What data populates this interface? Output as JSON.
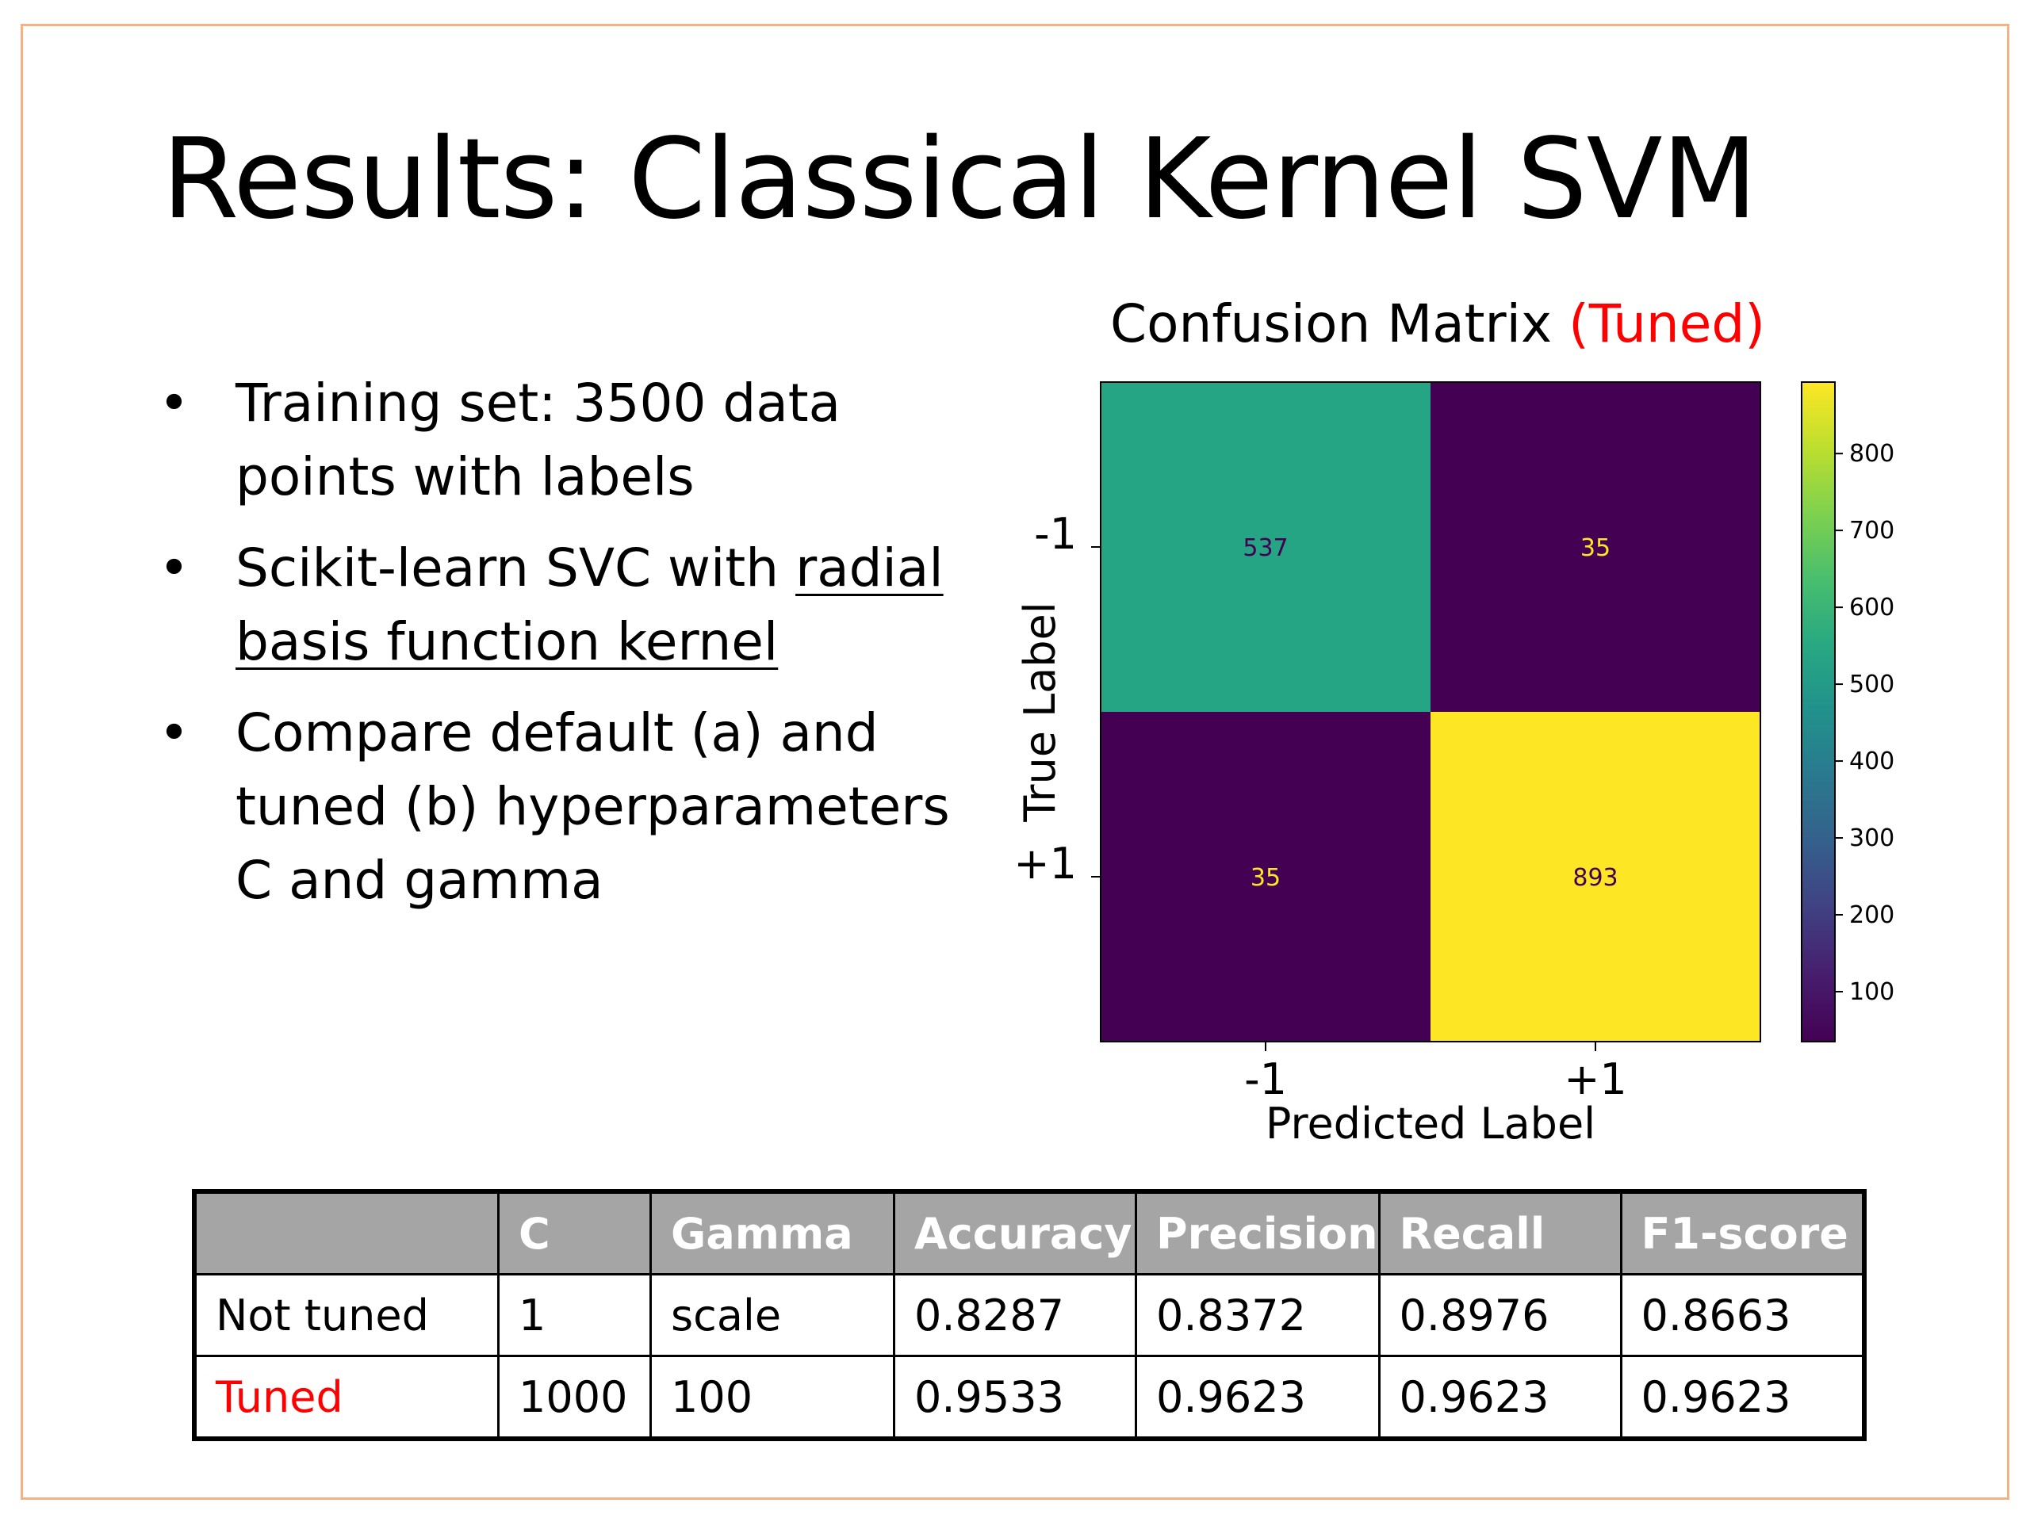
{
  "title": "Results: Classical Kernel SVM",
  "bullets": [
    {
      "text": "Training set: 3500 data points with labels"
    },
    {
      "prefix": "Scikit-learn SVC with ",
      "link": "radial basis function kernel"
    },
    {
      "text": "Compare default (a) and tuned (b) hyperparameters C and gamma"
    }
  ],
  "bullet_glyph": "•",
  "cm_title": {
    "main": "Confusion Matrix ",
    "highlight": "(Tuned)",
    "highlight_color": "#FF0000"
  },
  "chart_data": {
    "type": "heatmap",
    "title": "Confusion Matrix (Tuned)",
    "xlabel": "Predicted Label",
    "ylabel": "True Label",
    "x_categories": [
      "-1",
      "+1"
    ],
    "y_categories": [
      "-1",
      "+1"
    ],
    "values": [
      [
        537,
        35
      ],
      [
        35,
        893
      ]
    ],
    "colormap": "viridis",
    "color_range": [
      35,
      893
    ],
    "colorbar_ticks": [
      100,
      200,
      300,
      400,
      500,
      600,
      700,
      800
    ]
  },
  "table": {
    "header": [
      "",
      "C",
      "Gamma",
      "Accuracy",
      "Precision",
      "Recall",
      "F1-score"
    ],
    "rows": [
      {
        "label": "Not tuned",
        "label_color": "#000000",
        "values": [
          "1",
          "scale",
          "0.8287",
          "0.8372",
          "0.8976",
          "0.8663"
        ]
      },
      {
        "label": "Tuned",
        "label_color": "#FF0000",
        "values": [
          "1000",
          "100",
          "0.9533",
          "0.9623",
          "0.9623",
          "0.9623"
        ]
      }
    ],
    "header_bg": "#A5A5A5"
  },
  "border_color": "#F4B183"
}
